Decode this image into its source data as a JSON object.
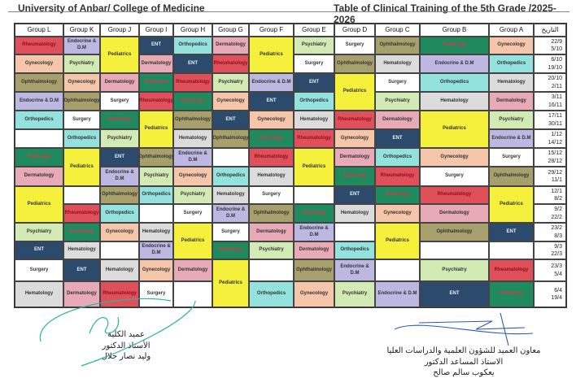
{
  "header": {
    "university": "University of Anbar/ College of Medicine",
    "title": "Table of Clinical Training of the 5th Grade /2025-2026"
  },
  "date_header": "التاريخ",
  "dates": [
    [
      "22/9",
      "5/10"
    ],
    [
      "6/10",
      "19/10"
    ],
    [
      "20/10",
      "2/11"
    ],
    [
      "3/11",
      "16/11"
    ],
    [
      "17/11",
      "30/11"
    ],
    [
      "1/12",
      "14/12"
    ],
    [
      "15/12",
      "28/12"
    ],
    [
      "29/12",
      "11/1"
    ],
    [
      "12/1",
      "8/2"
    ],
    [
      "9/2",
      "22/2"
    ],
    [
      "23/2",
      "8/3"
    ],
    [
      "9/3",
      "22/3"
    ],
    [
      "23/3",
      "5/4"
    ],
    [
      "6/4",
      "19/4"
    ]
  ],
  "subject_colors": {
    "Rheumatology": "#e0505a",
    "Gynecology": "#f6c6aa",
    "Ophthalmology": "#a8a06c",
    "Endocrine & D.M": "#bcb8e2",
    "Orthopedics": "#93e2de",
    "Radiology": "#1f8a5e",
    "Dermatology": "#e8aab6",
    "Pediatrics": "#f5f03c",
    "Psychiatry": "#d2eab4",
    "Surgery": "#ffffff",
    "ENT": "#2c4a6b",
    "Hematology": "#dcdcdc",
    "": "#ffffff"
  },
  "groups": [
    {
      "name": "Group L",
      "cells": [
        {
          "s": "Rheumatology"
        },
        {
          "s": "Gynecology"
        },
        {
          "s": "Ophthalmology"
        },
        {
          "s": "Endocrine & D.M"
        },
        {
          "s": "Orthopedics"
        },
        {
          "s": ""
        },
        {
          "s": "Radiology"
        },
        {
          "s": "Dermatology"
        },
        {
          "s": "Pediatrics",
          "span": 2
        },
        {
          "s": "Psychiatry"
        },
        {
          "s": "ENT"
        },
        {
          "s": "Surgery"
        },
        {
          "s": "Hematology"
        }
      ]
    },
    {
      "name": "Group K",
      "cells": [
        {
          "s": "Endocrine & D.M"
        },
        {
          "s": "Psychiatry"
        },
        {
          "s": "Gynecology"
        },
        {
          "s": "Ophthalmology"
        },
        {
          "s": "Surgery"
        },
        {
          "s": "Orthopedics"
        },
        {
          "s": "Pediatrics",
          "span": 2
        },
        {
          "s": ""
        },
        {
          "s": "Rheumatology"
        },
        {
          "s": "Radiology"
        },
        {
          "s": "Hematology"
        },
        {
          "s": "ENT"
        },
        {
          "s": "Dermatology"
        }
      ]
    },
    {
      "name": "Group J",
      "cells": [
        {
          "s": "Pediatrics",
          "span": 2
        },
        {
          "s": "Dermatology"
        },
        {
          "s": "Surgery"
        },
        {
          "s": "Radiology"
        },
        {
          "s": "Psychiatry"
        },
        {
          "s": "ENT"
        },
        {
          "s": "Endocrine & D.M"
        },
        {
          "s": "Ophthalmology"
        },
        {
          "s": "Orthopedics"
        },
        {
          "s": "Gynecology"
        },
        {
          "s": ""
        },
        {
          "s": "Hematology"
        },
        {
          "s": "Rheumatology"
        }
      ]
    },
    {
      "name": "Group I",
      "cells": [
        {
          "s": "ENT"
        },
        {
          "s": "Dermatology"
        },
        {
          "s": "Radiology"
        },
        {
          "s": "Rheumatology"
        },
        {
          "s": "Pediatrics",
          "span": 2
        },
        {
          "s": "Ophthalmology"
        },
        {
          "s": "Psychiatry"
        },
        {
          "s": "Orthopedics"
        },
        {
          "s": ""
        },
        {
          "s": "Hematology"
        },
        {
          "s": "Endocrine & D.M"
        },
        {
          "s": "Gynecology"
        },
        {
          "s": "Surgery"
        }
      ]
    },
    {
      "name": "Group H",
      "cells": [
        {
          "s": "Orthopedics"
        },
        {
          "s": "ENT"
        },
        {
          "s": "Rheumatology"
        },
        {
          "s": "Radiology"
        },
        {
          "s": "Ophthalmology"
        },
        {
          "s": "Hematology"
        },
        {
          "s": "Endocrine & D.M"
        },
        {
          "s": "Gynecology"
        },
        {
          "s": "Psychiatry"
        },
        {
          "s": "Surgery"
        },
        {
          "s": "Pediatrics",
          "span": 2
        },
        {
          "s": "Dermatology"
        },
        {
          "s": ""
        }
      ]
    },
    {
      "name": "Group G",
      "cells": [
        {
          "s": "Dermatology"
        },
        {
          "s": "Rheumatology"
        },
        {
          "s": "Psychiatry"
        },
        {
          "s": "Gynecology"
        },
        {
          "s": "ENT"
        },
        {
          "s": "Ophthalmology"
        },
        {
          "s": ""
        },
        {
          "s": "Orthopedics"
        },
        {
          "s": "Hematology"
        },
        {
          "s": "Endocrine & D.M"
        },
        {
          "s": "Surgery"
        },
        {
          "s": "Radiology"
        },
        {
          "s": "Pediatrics",
          "span": 2
        }
      ]
    },
    {
      "name": "Group F",
      "cells": [
        {
          "s": "Pediatrics",
          "span": 2
        },
        {
          "s": "Endocrine & D.M"
        },
        {
          "s": "ENT"
        },
        {
          "s": "Gynecology"
        },
        {
          "s": "Radiology"
        },
        {
          "s": "Rheumatology"
        },
        {
          "s": "Hematology"
        },
        {
          "s": "Surgery"
        },
        {
          "s": "Ophthalmology"
        },
        {
          "s": "Dermatology"
        },
        {
          "s": "Psychiatry"
        },
        {
          "s": ""
        },
        {
          "s": "Orthopedics"
        }
      ]
    },
    {
      "name": "Group E",
      "cells": [
        {
          "s": "Psychiatry"
        },
        {
          "s": "Surgery"
        },
        {
          "s": "ENT"
        },
        {
          "s": "Orthopedics"
        },
        {
          "s": "Hematology"
        },
        {
          "s": "Rheumatology"
        },
        {
          "s": "Pediatrics",
          "span": 2
        },
        {
          "s": ""
        },
        {
          "s": "Radiology"
        },
        {
          "s": "Endocrine & D.M"
        },
        {
          "s": "Dermatology"
        },
        {
          "s": "Ophthalmology"
        },
        {
          "s": "Gynecology"
        }
      ]
    },
    {
      "name": "Group D",
      "cells": [
        {
          "s": "Surgery"
        },
        {
          "s": "Ophthalmology"
        },
        {
          "s": "Pediatrics",
          "span": 2
        },
        {
          "s": "Rheumatology"
        },
        {
          "s": "Gynecology"
        },
        {
          "s": "Dermatology"
        },
        {
          "s": "Radiology"
        },
        {
          "s": "ENT"
        },
        {
          "s": "Hematology"
        },
        {
          "s": ""
        },
        {
          "s": "Orthopedics"
        },
        {
          "s": "Endocrine & D.M"
        },
        {
          "s": "Psychiatry"
        }
      ]
    },
    {
      "name": "Group C",
      "cells": [
        {
          "s": "Ophthalmology"
        },
        {
          "s": "Hematology"
        },
        {
          "s": "Surgery"
        },
        {
          "s": "Psychiatry"
        },
        {
          "s": "Dermatology"
        },
        {
          "s": "ENT"
        },
        {
          "s": "Orthopedics"
        },
        {
          "s": "Rheumatology"
        },
        {
          "s": "Radiology"
        },
        {
          "s": "Gynecology"
        },
        {
          "s": "Pediatrics",
          "span": 2
        },
        {
          "s": ""
        },
        {
          "s": "Endocrine & D.M"
        }
      ]
    },
    {
      "name": "Group B",
      "cells": [
        {
          "s": "Radiology"
        },
        {
          "s": "Endocrine & D.M"
        },
        {
          "s": "Orthopedics"
        },
        {
          "s": "Hematology"
        },
        {
          "s": "Pediatrics",
          "span": 2
        },
        {
          "s": "Gynecology"
        },
        {
          "s": "Surgery"
        },
        {
          "s": "Rheumatology"
        },
        {
          "s": "Dermatology"
        },
        {
          "s": "Ophthalmology"
        },
        {
          "s": ""
        },
        {
          "s": "Psychiatry"
        },
        {
          "s": "ENT"
        }
      ]
    },
    {
      "name": "Group A",
      "cells": [
        {
          "s": "Gynecology"
        },
        {
          "s": "Orthopedics"
        },
        {
          "s": "Hematology"
        },
        {
          "s": "Dermatology"
        },
        {
          "s": "Psychiatry"
        },
        {
          "s": "Endocrine & D.M"
        },
        {
          "s": "Surgery"
        },
        {
          "s": "Ophthalmology"
        },
        {
          "s": "Pediatrics",
          "span": 2
        },
        {
          "s": "ENT"
        },
        {
          "s": ""
        },
        {
          "s": "Rheumatology"
        },
        {
          "s": "Radiology"
        }
      ]
    }
  ],
  "signatures": {
    "left": [
      "عميد الكلية",
      "الأستاذ الدكتور",
      "وليد نصار جلال"
    ],
    "right": [
      "معاون العميد للشؤون العلمية والدراسات العليا",
      "الاستاذ المساعد الدكتور",
      "يعكوب سالم صالح"
    ]
  }
}
